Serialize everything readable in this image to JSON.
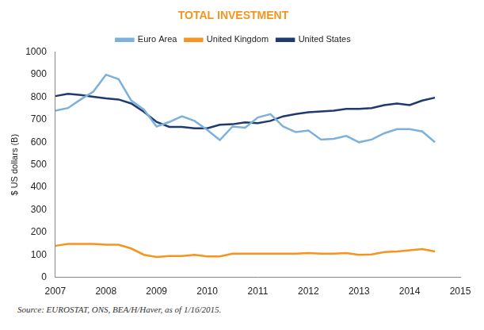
{
  "chart_data": {
    "type": "line",
    "title": "TOTAL INVESTMENT",
    "y_label": "$ US dollars (B)",
    "source": "Source: EUROSTAT, ONS, BEA/H/Haver, as of 1/16/2015.",
    "x": [
      2007,
      2007.25,
      2007.5,
      2007.75,
      2008,
      2008.25,
      2008.5,
      2008.75,
      2009,
      2009.25,
      2009.5,
      2009.75,
      2010,
      2010.25,
      2010.5,
      2010.75,
      2011,
      2011.25,
      2011.5,
      2011.75,
      2012,
      2012.25,
      2012.5,
      2012.75,
      2013,
      2013.25,
      2013.5,
      2013.75,
      2014,
      2014.25,
      2014.5
    ],
    "series": [
      {
        "name": "Euro Area",
        "color": "#7bb1dc",
        "values": [
          740,
          752,
          790,
          825,
          900,
          880,
          785,
          745,
          670,
          690,
          715,
          695,
          655,
          610,
          670,
          665,
          710,
          725,
          670,
          645,
          652,
          612,
          615,
          628,
          600,
          612,
          640,
          658,
          658,
          648,
          600
        ]
      },
      {
        "name": "United Kingdom",
        "color": "#f7941d",
        "values": [
          140,
          148,
          148,
          148,
          145,
          145,
          128,
          100,
          90,
          95,
          95,
          100,
          93,
          93,
          105,
          105,
          105,
          105,
          105,
          105,
          108,
          105,
          105,
          108,
          100,
          102,
          112,
          115,
          120,
          125,
          115
        ]
      },
      {
        "name": "United States",
        "color": "#1f3a6e",
        "values": [
          805,
          815,
          810,
          802,
          795,
          790,
          772,
          735,
          690,
          668,
          668,
          662,
          662,
          678,
          680,
          688,
          685,
          695,
          715,
          725,
          733,
          737,
          740,
          748,
          748,
          752,
          765,
          772,
          765,
          785,
          798
        ]
      }
    ],
    "xlim": [
      2007,
      2015
    ],
    "xticks": [
      2007,
      2008,
      2009,
      2010,
      2011,
      2012,
      2013,
      2014,
      2015
    ],
    "ylim": [
      0,
      1000
    ],
    "yticks": [
      0,
      100,
      200,
      300,
      400,
      500,
      600,
      700,
      800,
      900,
      1000
    ],
    "grid": false,
    "legend": "top"
  }
}
